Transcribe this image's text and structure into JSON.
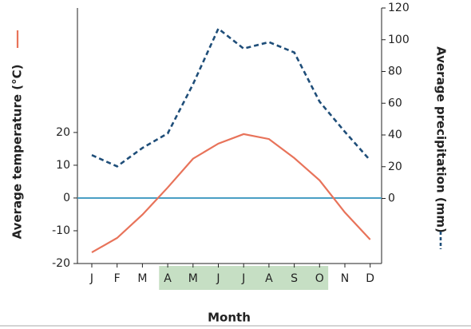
{
  "chart_data": {
    "type": "line",
    "x_label": "Month",
    "categories": [
      "J",
      "F",
      "M",
      "A",
      "M",
      "J",
      "J",
      "A",
      "S",
      "O",
      "N",
      "D"
    ],
    "series": [
      {
        "name": "Average temperature (°C)",
        "color": "#e8735a",
        "dashed": false,
        "axis": "y",
        "values": [
          -16.6,
          -12.2,
          -5.1,
          3.2,
          12,
          16.6,
          19.5,
          18,
          12.2,
          5.4,
          -4.4,
          -12.7
        ]
      },
      {
        "name": "Average precipitation (mm)",
        "color": "#1f4e79",
        "dashed": true,
        "axis": "y2",
        "values": [
          27.3,
          20.2,
          31.8,
          41,
          72,
          107,
          94.4,
          98.5,
          92,
          61,
          42,
          24
        ]
      }
    ],
    "ylim": [
      -20,
      58
    ],
    "yticks": [
      -20,
      -10,
      0,
      10,
      20
    ],
    "y2lim": [
      -41,
      120
    ],
    "y2ticks": [
      0,
      20,
      40,
      60,
      80,
      100,
      120
    ],
    "zero_line_color": "#4a9fc4",
    "shade": {
      "from": 3,
      "to": 9,
      "color": "#c6dfc4"
    }
  }
}
